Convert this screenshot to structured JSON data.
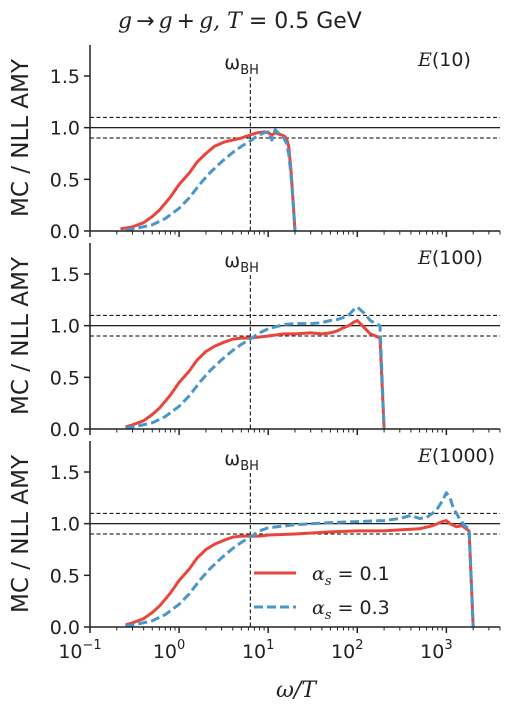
{
  "figure": {
    "title_a": "g",
    "title_b": "→",
    "title_c": "g",
    "title_d": "+",
    "title_e": "g, ",
    "title_f": "T",
    "title_g": " = 0.5 GeV",
    "ylabel": "MC / NLL AMY",
    "xlabel_main": "ω/T",
    "omega_bh_label_main": "ω",
    "omega_bh_label_sub": "BH"
  },
  "chart_data": [
    {
      "type": "line",
      "panel_label": "E(10)",
      "xscale": "log",
      "xlim": [
        0.1,
        4000
      ],
      "ylim": [
        0,
        1.8
      ],
      "yticks": [
        "0.0",
        "0.5",
        "1.0",
        "1.5"
      ],
      "xticks_shown": false,
      "reference_lines": {
        "solid": 1.0,
        "dashed": [
          0.9,
          1.1
        ],
        "vertical_x": 6.3
      },
      "series": [
        {
          "name_main": "α",
          "name_sub": "s",
          "name_rest": " = 0.1",
          "color": "#e8453c",
          "dash": "solid",
          "x": [
            0.22,
            0.3,
            0.4,
            0.5,
            0.6,
            0.8,
            1.0,
            1.3,
            1.6,
            2.0,
            2.5,
            3.2,
            4.0,
            5.0,
            6.3,
            7.5,
            9,
            10,
            11,
            12,
            13,
            14,
            15,
            16,
            17,
            18,
            19,
            20
          ],
          "y": [
            0.02,
            0.04,
            0.08,
            0.14,
            0.2,
            0.33,
            0.45,
            0.56,
            0.67,
            0.75,
            0.82,
            0.86,
            0.88,
            0.9,
            0.93,
            0.95,
            0.96,
            0.95,
            0.93,
            0.95,
            0.94,
            0.93,
            0.92,
            0.9,
            0.82,
            0.6,
            0.3,
            0.0
          ]
        },
        {
          "name_main": "α",
          "name_sub": "s",
          "name_rest": " = 0.3",
          "color": "#4a96c8",
          "dash": "dashed",
          "x": [
            0.25,
            0.35,
            0.5,
            0.7,
            1.0,
            1.3,
            1.7,
            2.2,
            3.0,
            4.0,
            5.0,
            6.3,
            7.5,
            9,
            10,
            11,
            12,
            13,
            14,
            15,
            16,
            17,
            18,
            19,
            20
          ],
          "y": [
            0.01,
            0.03,
            0.06,
            0.12,
            0.22,
            0.32,
            0.45,
            0.56,
            0.67,
            0.76,
            0.82,
            0.87,
            0.92,
            0.95,
            0.96,
            0.88,
            0.98,
            0.95,
            0.92,
            0.9,
            0.85,
            0.75,
            0.55,
            0.3,
            0.0
          ]
        }
      ]
    },
    {
      "type": "line",
      "panel_label": "E(100)",
      "xscale": "log",
      "xlim": [
        0.1,
        4000
      ],
      "ylim": [
        0,
        1.8
      ],
      "yticks": [
        "0.0",
        "0.5",
        "1.0",
        "1.5"
      ],
      "xticks_shown": false,
      "reference_lines": {
        "solid": 1.0,
        "dashed": [
          0.9,
          1.1
        ],
        "vertical_x": 6.3
      },
      "series": [
        {
          "name_main": "α",
          "name_sub": "s",
          "name_rest": " = 0.1",
          "color": "#e8453c",
          "dash": "solid",
          "x": [
            0.25,
            0.3,
            0.4,
            0.5,
            0.6,
            0.8,
            1.0,
            1.3,
            1.6,
            2.0,
            2.5,
            3.2,
            4.0,
            5.0,
            6.3,
            8,
            10,
            15,
            20,
            30,
            40,
            50,
            60,
            70,
            80,
            90,
            100,
            120,
            140,
            160,
            180,
            200
          ],
          "y": [
            0.02,
            0.04,
            0.08,
            0.14,
            0.2,
            0.33,
            0.45,
            0.56,
            0.67,
            0.75,
            0.8,
            0.84,
            0.87,
            0.88,
            0.88,
            0.89,
            0.9,
            0.92,
            0.92,
            0.93,
            0.92,
            0.93,
            0.95,
            0.98,
            1.0,
            1.03,
            1.05,
            0.98,
            0.92,
            0.9,
            0.88,
            0.0
          ]
        },
        {
          "name_main": "α",
          "name_sub": "s",
          "name_rest": " = 0.3",
          "color": "#4a96c8",
          "dash": "dashed",
          "x": [
            0.25,
            0.35,
            0.5,
            0.7,
            1.0,
            1.3,
            1.7,
            2.2,
            3.0,
            4.0,
            5.0,
            6.3,
            8,
            10,
            15,
            20,
            30,
            40,
            50,
            60,
            70,
            80,
            90,
            100,
            120,
            140,
            160,
            180,
            200
          ],
          "y": [
            0.01,
            0.03,
            0.06,
            0.12,
            0.22,
            0.32,
            0.45,
            0.56,
            0.67,
            0.76,
            0.82,
            0.87,
            0.93,
            0.97,
            1.01,
            1.02,
            1.02,
            1.03,
            1.05,
            1.06,
            1.08,
            1.1,
            1.15,
            1.18,
            1.12,
            1.05,
            1.02,
            1.0,
            0.0
          ]
        }
      ]
    },
    {
      "type": "line",
      "panel_label": "E(1000)",
      "xscale": "log",
      "xlim": [
        0.1,
        4000
      ],
      "ylim": [
        0,
        1.8
      ],
      "yticks": [
        "0.0",
        "0.5",
        "1.0",
        "1.5"
      ],
      "xticks": [
        "10",
        "10",
        "10",
        "10",
        "10"
      ],
      "xtick_exponents": [
        "−1",
        "0",
        "1",
        "2",
        "3"
      ],
      "reference_lines": {
        "solid": 1.0,
        "dashed": [
          0.9,
          1.1
        ],
        "vertical_x": 6.3
      },
      "legend_position": "lower-center",
      "series": [
        {
          "name_main": "α",
          "name_sub": "s",
          "name_rest": " = 0.1",
          "color": "#e8453c",
          "dash": "solid",
          "x": [
            0.25,
            0.3,
            0.4,
            0.5,
            0.6,
            0.8,
            1.0,
            1.3,
            1.6,
            2.0,
            2.5,
            3.2,
            4.0,
            5.0,
            6.3,
            8,
            10,
            20,
            50,
            100,
            200,
            300,
            500,
            700,
            900,
            1000,
            1100,
            1300,
            1500,
            1800,
            2000
          ],
          "y": [
            0.02,
            0.04,
            0.08,
            0.14,
            0.2,
            0.33,
            0.45,
            0.56,
            0.67,
            0.75,
            0.8,
            0.84,
            0.87,
            0.88,
            0.88,
            0.88,
            0.89,
            0.9,
            0.92,
            0.93,
            0.93,
            0.94,
            0.95,
            0.98,
            1.02,
            1.03,
            1.0,
            0.97,
            0.98,
            0.93,
            0.0
          ]
        },
        {
          "name_main": "α",
          "name_sub": "s",
          "name_rest": " = 0.3",
          "color": "#4a96c8",
          "dash": "dashed",
          "x": [
            0.25,
            0.35,
            0.5,
            0.7,
            1.0,
            1.3,
            1.7,
            2.2,
            3.0,
            4.0,
            5.0,
            6.3,
            8,
            10,
            20,
            50,
            100,
            200,
            300,
            400,
            500,
            600,
            700,
            800,
            900,
            1000,
            1100,
            1200,
            1400,
            1600,
            1800,
            2000
          ],
          "y": [
            0.01,
            0.03,
            0.06,
            0.12,
            0.22,
            0.32,
            0.45,
            0.56,
            0.67,
            0.76,
            0.82,
            0.87,
            0.93,
            0.96,
            0.99,
            1.01,
            1.02,
            1.03,
            1.05,
            1.08,
            1.05,
            1.06,
            1.1,
            1.15,
            1.22,
            1.3,
            1.25,
            1.15,
            1.05,
            0.98,
            0.95,
            0.0
          ]
        }
      ]
    }
  ]
}
